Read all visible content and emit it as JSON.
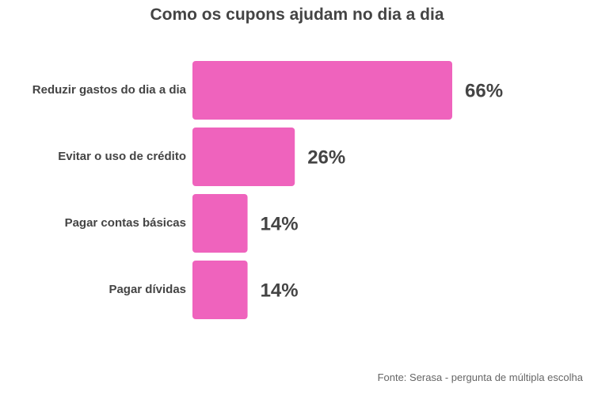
{
  "chart_data": {
    "type": "bar",
    "orientation": "horizontal",
    "title": "Como os cupons ajudam no dia a dia",
    "categories": [
      "Reduzir gastos do dia a dia",
      "Evitar o uso de crédito",
      "Pagar contas básicas",
      "Pagar dívidas"
    ],
    "values": [
      66,
      26,
      14,
      14
    ],
    "value_labels": [
      "66%",
      "26%",
      "14%",
      "14%"
    ],
    "xlim": [
      0,
      66
    ],
    "grid": false,
    "legend": "none",
    "bar_color": "#ef63bd"
  },
  "source": "Fonte: Serasa - pergunta de múltipla escolha"
}
